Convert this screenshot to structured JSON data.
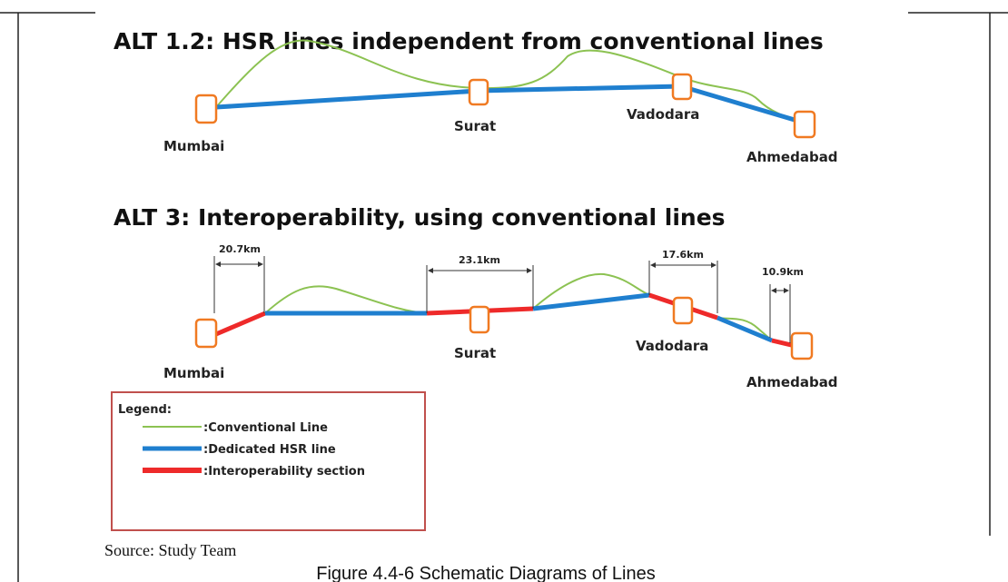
{
  "diagrams": [
    {
      "title": "ALT 1.2: HSR lines independent from conventional lines",
      "stations": [
        "Mumbai",
        "Surat",
        "Vadodara",
        "Ahmedabad"
      ]
    },
    {
      "title": "ALT 3: Interoperability, using conventional lines",
      "stations": [
        "Mumbai",
        "Surat",
        "Vadodara",
        "Ahmedabad"
      ],
      "distances": [
        "20.7km",
        "23.1km",
        "17.6km",
        "10.9km"
      ]
    }
  ],
  "legend": {
    "title": "Legend:",
    "items": [
      ":Conventional Line",
      ":Dedicated HSR line",
      ":Interoperability section"
    ]
  },
  "source": "Source: Study Team",
  "caption": "Figure 4.4-6 Schematic Diagrams of Lines"
}
